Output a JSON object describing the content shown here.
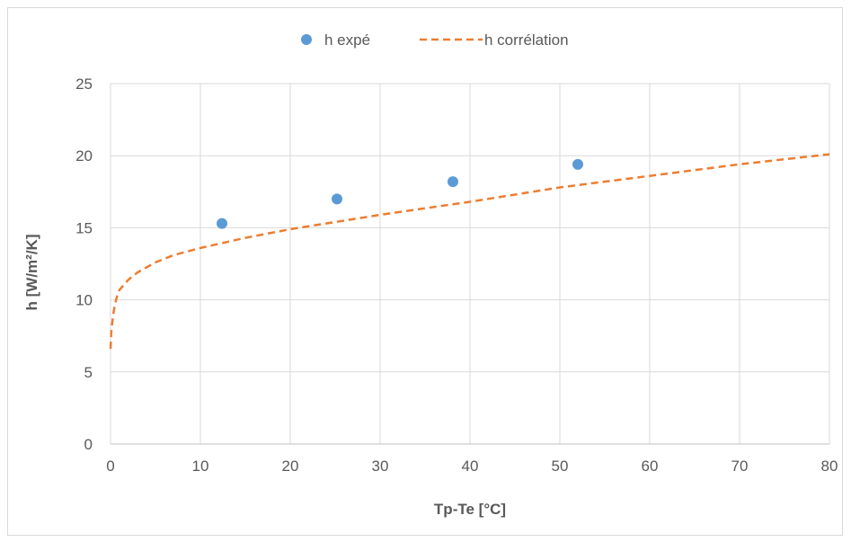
{
  "chart_data": {
    "type": "scatter",
    "title": "",
    "xlabel": "Tp-Te [°C]",
    "ylabel": "h [W/m²/K]",
    "xlim": [
      0,
      80
    ],
    "ylim": [
      0,
      25
    ],
    "x_ticks": [
      "0",
      "10",
      "20",
      "30",
      "40",
      "50",
      "60",
      "70",
      "80"
    ],
    "y_ticks": [
      "0",
      "5",
      "10",
      "15",
      "20",
      "25"
    ],
    "grid": true,
    "legend_position": "top",
    "series": [
      {
        "name": "h expé",
        "type": "scatter",
        "color": "#5b9bd5",
        "x": [
          12.4,
          25.2,
          38.1,
          52.0
        ],
        "y": [
          15.3,
          17.0,
          18.2,
          19.4
        ]
      },
      {
        "name": "h corrélation",
        "type": "line",
        "style": "dashed",
        "color": "#ed7d31",
        "x": [
          0.0,
          0.1,
          0.3,
          0.5,
          0.7,
          1.0,
          2.0,
          3.0,
          5.0,
          7.0,
          10.0,
          15.0,
          20.0,
          30.0,
          40.0,
          50.0,
          60.0,
          70.0,
          80.0
        ],
        "y": [
          6.6,
          7.9,
          9.0,
          9.7,
          10.2,
          10.7,
          11.4,
          11.9,
          12.6,
          13.1,
          13.6,
          14.3,
          14.9,
          15.9,
          16.8,
          17.8,
          18.6,
          19.4,
          20.1
        ]
      }
    ]
  }
}
